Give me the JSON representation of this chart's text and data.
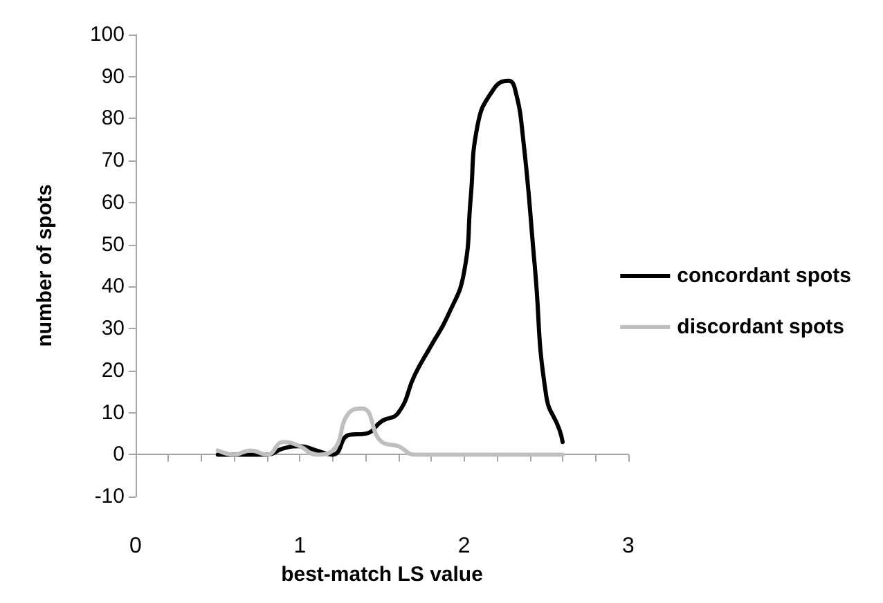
{
  "chart_data": {
    "type": "line",
    "xlabel": "best-match LS value",
    "ylabel": "number of spots",
    "series": [
      {
        "name": "concordant spots",
        "color": "#000000",
        "x": [
          0.5,
          0.6,
          0.7,
          0.8,
          0.9,
          1.0,
          1.1,
          1.2,
          1.3,
          1.4,
          1.5,
          1.6,
          1.7,
          1.8,
          1.9,
          2.0,
          2.04,
          2.08,
          2.18,
          2.27,
          2.31,
          2.36,
          2.43,
          2.5,
          2.58,
          2.6
        ],
        "values": [
          0,
          0,
          0,
          0,
          1.5,
          2,
          1,
          0,
          4.7,
          5,
          8,
          10,
          19,
          26,
          33,
          43.5,
          61,
          78,
          87,
          89,
          87,
          75,
          45,
          14,
          6,
          3
        ]
      },
      {
        "name": "discordant spots",
        "color": "#bfbfbf",
        "x": [
          0.5,
          0.6,
          0.7,
          0.8,
          0.9,
          1.0,
          1.1,
          1.2,
          1.3,
          1.38,
          1.5,
          1.6,
          1.7,
          1.8,
          1.9,
          2.0,
          2.1,
          2.2,
          2.3,
          2.4,
          2.5,
          2.6
        ],
        "values": [
          1,
          0,
          1,
          0,
          3,
          2,
          0,
          1,
          10,
          11,
          3,
          2,
          0,
          0,
          0,
          0,
          0,
          0,
          0,
          0,
          0,
          0
        ]
      }
    ],
    "xlim": [
      0,
      3
    ],
    "xticks": [
      0,
      {
        "value": 0.2,
        "label": null
      },
      {
        "value": 0.4,
        "label": null
      },
      {
        "value": 0.6,
        "label": null
      },
      {
        "value": 0.8,
        "label": null
      },
      1,
      {
        "value": 1.2,
        "label": null
      },
      {
        "value": 1.4,
        "label": null
      },
      {
        "value": 1.6,
        "label": null
      },
      {
        "value": 1.8,
        "label": null
      },
      2,
      {
        "value": 2.2,
        "label": null
      },
      {
        "value": 2.4,
        "label": null
      },
      {
        "value": 2.6,
        "label": null
      },
      {
        "value": 2.8,
        "label": null
      },
      3
    ],
    "ylim": [
      -10,
      100
    ],
    "yticks": [
      -10,
      0,
      10,
      20,
      30,
      40,
      50,
      60,
      70,
      80,
      90,
      100
    ],
    "legend": "right",
    "marker": "none",
    "line_style": "solid"
  }
}
